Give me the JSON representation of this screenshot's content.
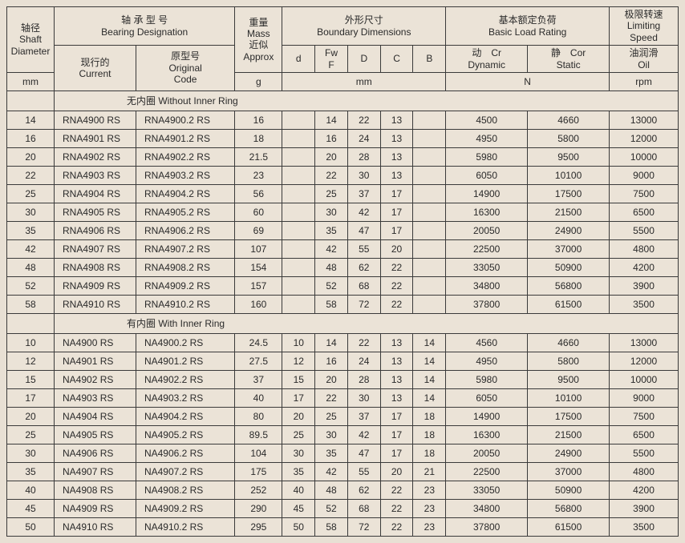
{
  "headers": {
    "shaft": {
      "l1": "轴径",
      "l2": "Shaft",
      "l3": "Diameter",
      "unit": "mm"
    },
    "bearing": {
      "grp_cn": "轴 承 型 号",
      "grp_en": "Bearing Designation",
      "cur_cn": "现行的",
      "cur_en": "Current",
      "orig_cn": "原型号",
      "orig_en": "Original",
      "orig_en2": "Code"
    },
    "mass": {
      "l1": "重量",
      "l2": "Mass",
      "l3": "近似",
      "l4": "Approx",
      "unit": "g"
    },
    "dims": {
      "grp_cn": "外形尺寸",
      "grp_en": "Boundary Dimensions",
      "d": "d",
      "fwf1": "Fw",
      "fwf2": "F",
      "D": "D",
      "C": "C",
      "B": "B",
      "unit": "mm"
    },
    "load": {
      "grp_cn": "基本额定负荷",
      "grp_en": "Basic Load Rating",
      "cr1": "动　Cr",
      "cr2": "Dynamic",
      "cor1": "静　Cor",
      "cor2": "Static",
      "unit": "N"
    },
    "speed": {
      "grp_cn": "极限转速",
      "grp_en": "Limiting Speed",
      "oil_cn": "油润滑",
      "oil_en": "Oil",
      "unit": "rpm"
    }
  },
  "sections": {
    "noInner": "无内圈  Without Inner Ring",
    "withInner": "有内圈  With Inner Ring"
  },
  "rowsNoInner": [
    {
      "shaft": "14",
      "cur": "RNA4900 RS",
      "orig": "RNA4900.2 RS",
      "mass": "16",
      "d": "",
      "fwf": "14",
      "D": "22",
      "C": "13",
      "B": "",
      "cr": "4500",
      "cor": "4660",
      "rpm": "13000"
    },
    {
      "shaft": "16",
      "cur": "RNA4901 RS",
      "orig": "RNA4901.2 RS",
      "mass": "18",
      "d": "",
      "fwf": "16",
      "D": "24",
      "C": "13",
      "B": "",
      "cr": "4950",
      "cor": "5800",
      "rpm": "12000"
    },
    {
      "shaft": "20",
      "cur": "RNA4902 RS",
      "orig": "RNA4902.2 RS",
      "mass": "21.5",
      "d": "",
      "fwf": "20",
      "D": "28",
      "C": "13",
      "B": "",
      "cr": "5980",
      "cor": "9500",
      "rpm": "10000"
    },
    {
      "shaft": "22",
      "cur": "RNA4903 RS",
      "orig": "RNA4903.2 RS",
      "mass": "23",
      "d": "",
      "fwf": "22",
      "D": "30",
      "C": "13",
      "B": "",
      "cr": "6050",
      "cor": "10100",
      "rpm": "9000"
    },
    {
      "shaft": "25",
      "cur": "RNA4904 RS",
      "orig": "RNA4904.2 RS",
      "mass": "56",
      "d": "",
      "fwf": "25",
      "D": "37",
      "C": "17",
      "B": "",
      "cr": "14900",
      "cor": "17500",
      "rpm": "7500"
    },
    {
      "shaft": "30",
      "cur": "RNA4905 RS",
      "orig": "RNA4905.2 RS",
      "mass": "60",
      "d": "",
      "fwf": "30",
      "D": "42",
      "C": "17",
      "B": "",
      "cr": "16300",
      "cor": "21500",
      "rpm": "6500"
    },
    {
      "shaft": "35",
      "cur": "RNA4906 RS",
      "orig": "RNA4906.2 RS",
      "mass": "69",
      "d": "",
      "fwf": "35",
      "D": "47",
      "C": "17",
      "B": "",
      "cr": "20050",
      "cor": "24900",
      "rpm": "5500"
    },
    {
      "shaft": "42",
      "cur": "RNA4907 RS",
      "orig": "RNA4907.2 RS",
      "mass": "107",
      "d": "",
      "fwf": "42",
      "D": "55",
      "C": "20",
      "B": "",
      "cr": "22500",
      "cor": "37000",
      "rpm": "4800"
    },
    {
      "shaft": "48",
      "cur": "RNA4908 RS",
      "orig": "RNA4908.2 RS",
      "mass": "154",
      "d": "",
      "fwf": "48",
      "D": "62",
      "C": "22",
      "B": "",
      "cr": "33050",
      "cor": "50900",
      "rpm": "4200"
    },
    {
      "shaft": "52",
      "cur": "RNA4909 RS",
      "orig": "RNA4909.2 RS",
      "mass": "157",
      "d": "",
      "fwf": "52",
      "D": "68",
      "C": "22",
      "B": "",
      "cr": "34800",
      "cor": "56800",
      "rpm": "3900"
    },
    {
      "shaft": "58",
      "cur": "RNA4910 RS",
      "orig": "RNA4910.2 RS",
      "mass": "160",
      "d": "",
      "fwf": "58",
      "D": "72",
      "C": "22",
      "B": "",
      "cr": "37800",
      "cor": "61500",
      "rpm": "3500"
    }
  ],
  "rowsWithInner": [
    {
      "shaft": "10",
      "cur": "NA4900 RS",
      "orig": "NA4900.2 RS",
      "mass": "24.5",
      "d": "10",
      "fwf": "14",
      "D": "22",
      "C": "13",
      "B": "14",
      "cr": "4560",
      "cor": "4660",
      "rpm": "13000"
    },
    {
      "shaft": "12",
      "cur": "NA4901 RS",
      "orig": "NA4901.2 RS",
      "mass": "27.5",
      "d": "12",
      "fwf": "16",
      "D": "24",
      "C": "13",
      "B": "14",
      "cr": "4950",
      "cor": "5800",
      "rpm": "12000"
    },
    {
      "shaft": "15",
      "cur": "NA4902 RS",
      "orig": "NA4902.2 RS",
      "mass": "37",
      "d": "15",
      "fwf": "20",
      "D": "28",
      "C": "13",
      "B": "14",
      "cr": "5980",
      "cor": "9500",
      "rpm": "10000"
    },
    {
      "shaft": "17",
      "cur": "NA4903 RS",
      "orig": "NA4903.2 RS",
      "mass": "40",
      "d": "17",
      "fwf": "22",
      "D": "30",
      "C": "13",
      "B": "14",
      "cr": "6050",
      "cor": "10100",
      "rpm": "9000"
    },
    {
      "shaft": "20",
      "cur": "NA4904 RS",
      "orig": "NA4904.2 RS",
      "mass": "80",
      "d": "20",
      "fwf": "25",
      "D": "37",
      "C": "17",
      "B": "18",
      "cr": "14900",
      "cor": "17500",
      "rpm": "7500"
    },
    {
      "shaft": "25",
      "cur": "NA4905 RS",
      "orig": "NA4905.2 RS",
      "mass": "89.5",
      "d": "25",
      "fwf": "30",
      "D": "42",
      "C": "17",
      "B": "18",
      "cr": "16300",
      "cor": "21500",
      "rpm": "6500"
    },
    {
      "shaft": "30",
      "cur": "NA4906 RS",
      "orig": "NA4906.2 RS",
      "mass": "104",
      "d": "30",
      "fwf": "35",
      "D": "47",
      "C": "17",
      "B": "18",
      "cr": "20050",
      "cor": "24900",
      "rpm": "5500"
    },
    {
      "shaft": "35",
      "cur": "NA4907 RS",
      "orig": "NA4907.2 RS",
      "mass": "175",
      "d": "35",
      "fwf": "42",
      "D": "55",
      "C": "20",
      "B": "21",
      "cr": "22500",
      "cor": "37000",
      "rpm": "4800"
    },
    {
      "shaft": "40",
      "cur": "NA4908 RS",
      "orig": "NA4908.2 RS",
      "mass": "252",
      "d": "40",
      "fwf": "48",
      "D": "62",
      "C": "22",
      "B": "23",
      "cr": "33050",
      "cor": "50900",
      "rpm": "4200"
    },
    {
      "shaft": "45",
      "cur": "NA4909 RS",
      "orig": "NA4909.2 RS",
      "mass": "290",
      "d": "45",
      "fwf": "52",
      "D": "68",
      "C": "22",
      "B": "23",
      "cr": "34800",
      "cor": "56800",
      "rpm": "3900"
    },
    {
      "shaft": "50",
      "cur": "NA4910 RS",
      "orig": "NA4910.2 RS",
      "mass": "295",
      "d": "50",
      "fwf": "58",
      "D": "72",
      "C": "22",
      "B": "23",
      "cr": "37800",
      "cor": "61500",
      "rpm": "3500"
    }
  ]
}
